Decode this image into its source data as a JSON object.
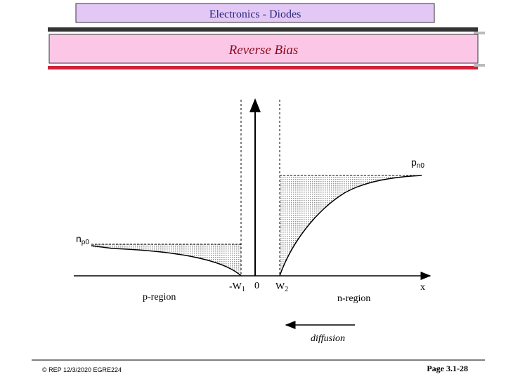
{
  "header": {
    "title": "Electronics - Diodes",
    "subtitle": "Reverse Bias"
  },
  "diagram": {
    "pn0": {
      "main": "p",
      "sub": "n0"
    },
    "np0": {
      "main": "n",
      "sub": "p0"
    },
    "neg_w1": {
      "main": "-W",
      "sub": "1"
    },
    "origin": "0",
    "w2": {
      "main": "W",
      "sub": "2"
    },
    "x_axis": "x",
    "p_region": "p-region",
    "n_region": "n-region",
    "diffusion": "diffusion"
  },
  "footer": {
    "left": "© REP  12/3/2020  EGRE224",
    "right": "Page 3.1-28"
  }
}
